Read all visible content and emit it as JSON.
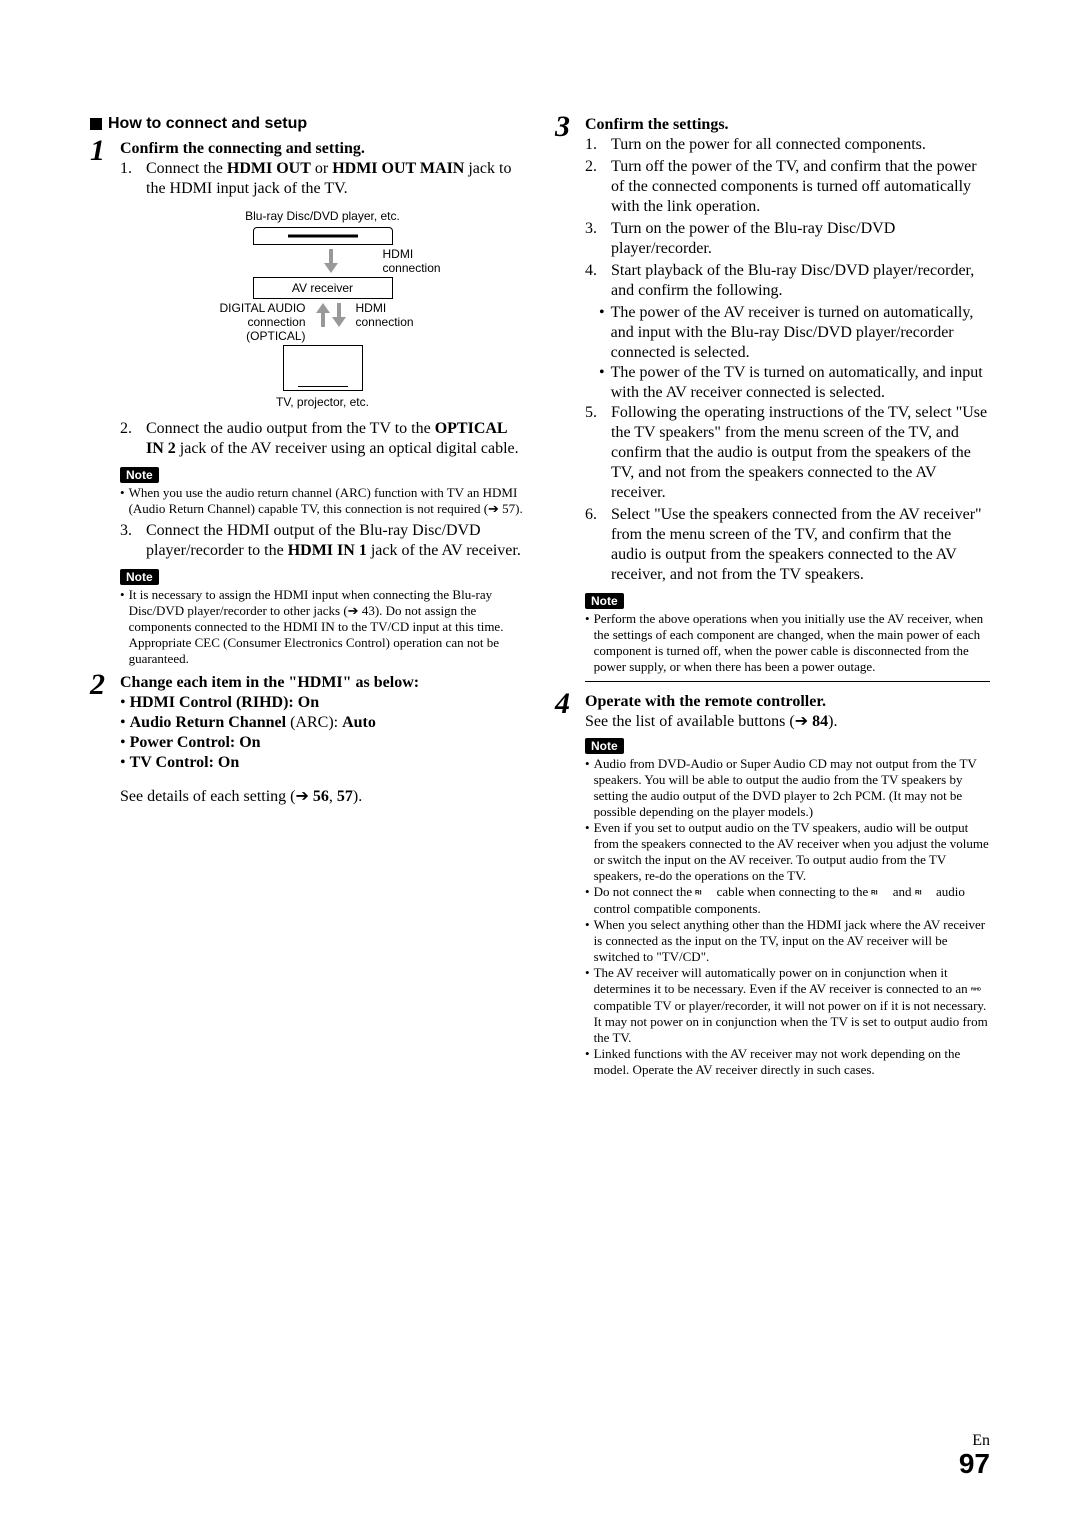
{
  "section_title": "How to connect and setup",
  "diagram": {
    "top_label": "Blu-ray Disc/DVD player, etc.",
    "hdmi_conn": "HDMI\nconnection",
    "mid_label": "AV receiver",
    "left_label": "DIGITAL AUDIO\nconnection\n(OPTICAL)",
    "right_label": "HDMI\nconnection",
    "bottom_label": "TV, projector, etc."
  },
  "steps_left": [
    {
      "num": "1",
      "title": "Confirm the connecting and setting.",
      "items": [
        {
          "n": "1.",
          "html": "Connect the <b>HDMI OUT</b> or <b>HDMI OUT MAIN</b> jack to the HDMI input jack of the TV."
        },
        {
          "n": "2.",
          "html": "Connect the audio output from the TV to the <b>OPTICAL IN 2</b> jack of the AV receiver using an optical digital cable."
        }
      ],
      "note1": [
        "When you use the audio return channel (ARC) function with TV an HDMI (Audio Return Channel) capable TV, this connection is not required (➔ 57)."
      ],
      "items2": [
        {
          "n": "3.",
          "html": "Connect the HDMI output of the Blu-ray Disc/DVD player/recorder to the <b>HDMI IN 1</b> jack of the AV receiver."
        }
      ],
      "note2": [
        "It is necessary to assign the HDMI input when connecting the Blu-ray Disc/DVD player/recorder to other jacks (➔ 43). Do not assign the components connected to the HDMI IN to the TV/CD input at this time. Appropriate CEC (Consumer Electronics Control) operation can not be guaranteed."
      ]
    },
    {
      "num": "2",
      "title": "Change each item in the \"HDMI\" as below:",
      "bullets": [
        "HDMI Control (RIHD): On",
        "Audio Return Channel (ARC): Auto",
        "Power Control: On",
        "TV Control: On"
      ],
      "footer_html": "See details of each setting (➔ <b>56</b>, <b>57</b>)."
    }
  ],
  "steps_right": [
    {
      "num": "3",
      "title": "Confirm the settings.",
      "items": [
        {
          "n": "1.",
          "html": "Turn on the power for all connected components."
        },
        {
          "n": "2.",
          "html": "Turn off the power of the TV, and confirm that the power of the connected components is turned off automatically with the link operation."
        },
        {
          "n": "3.",
          "html": "Turn on the power of the Blu-ray Disc/DVD player/recorder."
        },
        {
          "n": "4.",
          "html": "Start playback of the Blu-ray Disc/DVD player/recorder, and confirm the following.",
          "sub": [
            "The power of the AV receiver is turned on automatically, and input with the Blu-ray Disc/DVD player/recorder connected is selected.",
            "The power of the TV is turned on automatically, and input with the AV receiver connected is selected."
          ]
        },
        {
          "n": "5.",
          "html": "Following the operating instructions of the TV, select \"Use the TV speakers\" from the menu screen of the TV, and confirm that the audio is output from the speakers of the TV, and not from the speakers connected to the AV receiver."
        },
        {
          "n": "6.",
          "html": "Select \"Use the speakers connected from the AV receiver\" from the menu screen of the TV, and confirm that the audio is output from the speakers connected to the AV receiver, and not from the TV speakers."
        }
      ],
      "note": [
        "Perform the above operations when you initially use the AV receiver, when the settings of each component are changed, when the main power of each component is turned off, when the power cable is disconnected from the power supply, or when there has been a power outage."
      ]
    },
    {
      "num": "4",
      "title": "Operate with the remote controller.",
      "body_html": "See the list of available buttons (➔ <b>84</b>).",
      "note": [
        "Audio from DVD-Audio or Super Audio CD may not output from the TV speakers. You will be able to output the audio from the TV speakers by setting the audio output of the DVD player to 2ch PCM. (It may not be possible depending on the player models.)",
        "Even if you set to output audio on the TV speakers, audio will be output from the speakers connected to the AV receiver when you adjust the volume or switch the input on the AV receiver. To output audio from the TV speakers, re-do the operations on the TV.",
        "Do not connect the {RI} cable when connecting to the {RI} and {RI} audio control compatible components.",
        "When you select anything other than the HDMI jack where the AV receiver is connected as the input on the TV, input on the AV receiver will be switched to \"TV/CD\".",
        "The AV receiver will automatically power on in conjunction when it determines it to be necessary. Even if the AV receiver is connected to an {RIHD} compatible TV or player/recorder, it will not power on if it is not necessary. It may not power on in conjunction when the TV is set to output audio from the TV.",
        "Linked functions with the AV receiver may not work depending on the model. Operate the AV receiver directly in such cases."
      ]
    }
  ],
  "note_label": "Note",
  "page": {
    "lang": "En",
    "num": "97"
  }
}
